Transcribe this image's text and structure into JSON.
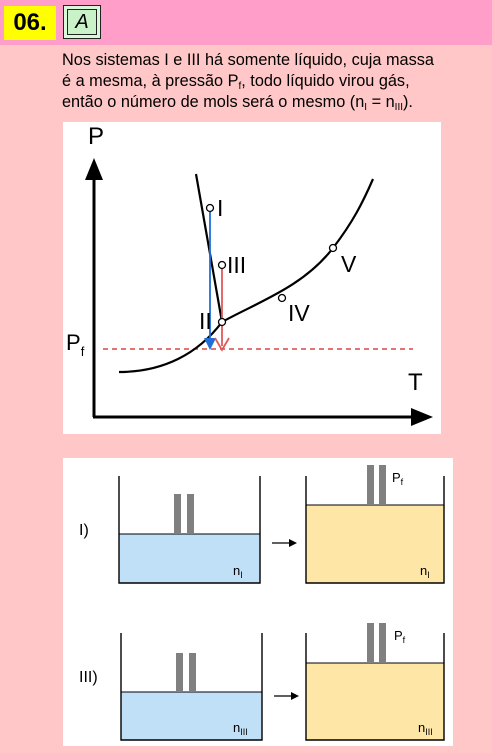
{
  "question": {
    "number": "06.",
    "answer": "A"
  },
  "explanation": {
    "line1": "Nos sistemas I e III há somente líquido, cuja massa",
    "line2": "é a mesma, à pressão P",
    "line2_sub": "f",
    "line2_end": ", todo líquido virou gás,",
    "line3": "então o número de mols será o mesmo (n",
    "line3_sub1": "I",
    "line3_mid": " = n",
    "line3_sub2": "III",
    "line3_end": ")."
  },
  "graph": {
    "y_axis_label": "P",
    "x_axis_label": "T",
    "pf_label": "P",
    "pf_sub": "f",
    "points": [
      "I",
      "III",
      "II",
      "IV",
      "V"
    ],
    "colors": {
      "arrow_I": "#1f6fd6",
      "arrow_III": "#e05a5a",
      "pf_line": "#d02020",
      "curve": "#000000"
    }
  },
  "systems": {
    "row1_label": "I)",
    "row2_label": "III)",
    "n_I": "n",
    "n_I_sub": "I",
    "n_III": "n",
    "n_III_sub": "III",
    "pf": "P",
    "pf_sub": "f",
    "colors": {
      "liquid": "#bfe0f7",
      "gas": "#fde6a6",
      "piston": "#808080"
    }
  }
}
